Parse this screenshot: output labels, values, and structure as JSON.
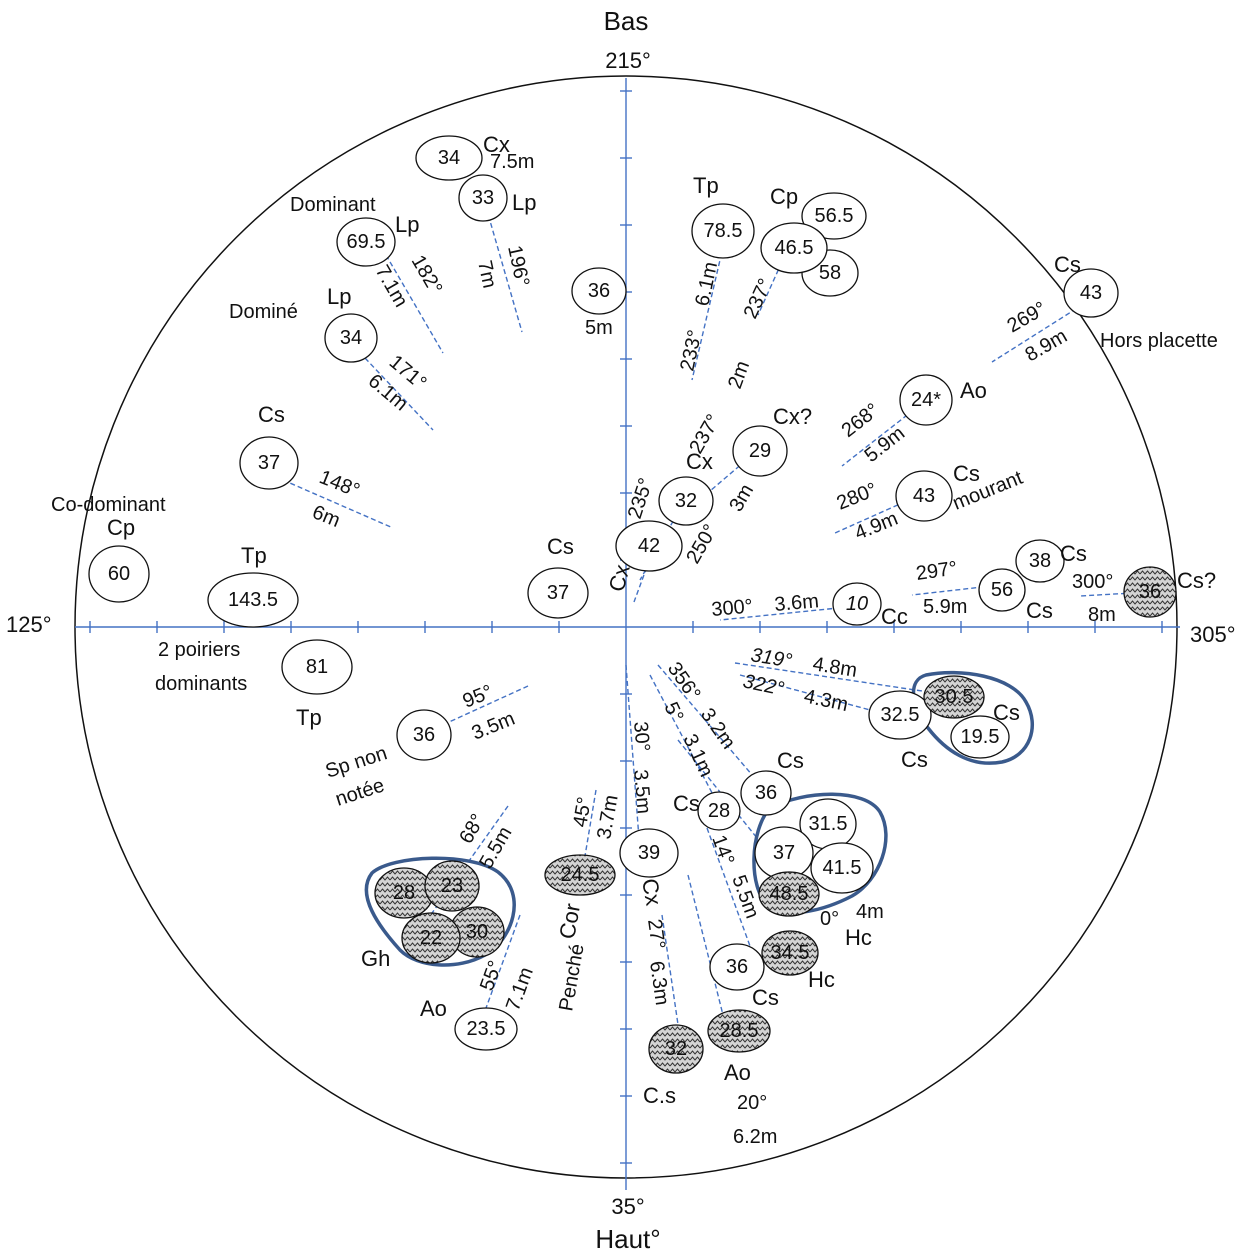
{
  "compass": {
    "top_word": "Bas",
    "top_angle": "215°",
    "bottom_angle": "35°",
    "bottom_word": "Haut°",
    "left_angle": "125°",
    "right_angle": "305°"
  },
  "trees": [
    {
      "id": "t01",
      "value": "34",
      "species": "Cx",
      "distance": "7.5m"
    },
    {
      "id": "t02",
      "value": "33",
      "species": "Lp",
      "angle": "196°",
      "distance": "7m"
    },
    {
      "id": "t03",
      "value": "69.5",
      "species": "Lp",
      "note": "Dominant",
      "angle": "182°",
      "distance": "7.1m"
    },
    {
      "id": "t04",
      "value": "34",
      "species": "Lp",
      "note": "Dominé",
      "angle": "171°",
      "distance": "6.1m"
    },
    {
      "id": "t05",
      "value": "36",
      "distance": "5m"
    },
    {
      "id": "t06",
      "value": "78.5",
      "species": "Tp",
      "angle": "233°",
      "distance": "6.1m"
    },
    {
      "id": "t07",
      "value": "46.5",
      "species": "Cp",
      "angle": "237°"
    },
    {
      "id": "t08",
      "value": "56.5"
    },
    {
      "id": "t09",
      "value": "58"
    },
    {
      "id": "t10",
      "value": "43",
      "species": "Cs",
      "note": "Hors placette",
      "angle": "269°",
      "distance": "8.9m"
    },
    {
      "id": "t11",
      "value": "24*",
      "species": "Ao",
      "angle": "268°",
      "distance": "5.9m"
    },
    {
      "id": "t12",
      "value": "43",
      "species": "Cs",
      "note": "mourant",
      "angle": "280°",
      "distance": "4.9m"
    },
    {
      "id": "t13",
      "value": "29",
      "species": "Cx?",
      "angle": "237°",
      "distance": "2m"
    },
    {
      "id": "t14",
      "value": "32",
      "species": "Cx",
      "angle": "235°"
    },
    {
      "id": "t15",
      "value": "42",
      "species": "Cx",
      "angle": "250°",
      "distance": "3m"
    },
    {
      "id": "t16",
      "value": "37",
      "species": "Cs",
      "angle": "148°",
      "distance": "6m"
    },
    {
      "id": "t17",
      "value": "37",
      "species": "Cs"
    },
    {
      "id": "t18",
      "value": "60",
      "species": "Cp",
      "note": "Co-dominant"
    },
    {
      "id": "t19",
      "value": "143.5",
      "species": "Tp"
    },
    {
      "id": "t20",
      "value": "81",
      "species": "Tp",
      "note": "2 poiriers dominants"
    },
    {
      "id": "t21",
      "value": "10",
      "species": "Cc",
      "angle": "300°",
      "distance": "3.6m"
    },
    {
      "id": "t22",
      "value": "56",
      "species": "Cs",
      "angle": "297°",
      "distance": "5.9m"
    },
    {
      "id": "t23",
      "value": "38",
      "species": "Cs"
    },
    {
      "id": "t24",
      "value": "36",
      "species": "Cs?",
      "angle": "300°",
      "distance": "8m"
    },
    {
      "id": "t25",
      "value": "30.5",
      "species": "Cs",
      "angle": "319°",
      "distance": "4.8m"
    },
    {
      "id": "t26",
      "value": "19.5"
    },
    {
      "id": "t27",
      "value": "32.5",
      "species": "Cs",
      "angle": "322°",
      "distance": "4.3m"
    },
    {
      "id": "t28",
      "value": "36",
      "species": "Sp non notée",
      "angle": "95°",
      "distance": "3.5m"
    },
    {
      "id": "t29",
      "value": "36",
      "species": "Cs",
      "angle": "356°",
      "distance": "3.2m"
    },
    {
      "id": "t30",
      "value": "28",
      "species": "Cs",
      "angle": "5°",
      "distance": "3.1m"
    },
    {
      "id": "t31",
      "value": "31.5"
    },
    {
      "id": "t32",
      "value": "37"
    },
    {
      "id": "t33",
      "value": "41.5"
    },
    {
      "id": "t34",
      "value": "48.5",
      "species": "Hc",
      "angle": "0°",
      "distance": "4m"
    },
    {
      "id": "t35",
      "value": "39",
      "species": "Cx",
      "angle": "30°",
      "distance": "3.5m"
    },
    {
      "id": "t36",
      "value": "24.5",
      "species": "Cor",
      "note": "Penché",
      "angle": "45°",
      "distance": "3.7m"
    },
    {
      "id": "t37",
      "value": "28",
      "species": "Gh"
    },
    {
      "id": "t38",
      "value": "23"
    },
    {
      "id": "t39",
      "value": "22"
    },
    {
      "id": "t40",
      "value": "30",
      "angle": "68°",
      "distance": "5.5m"
    },
    {
      "id": "t41",
      "value": "23.5",
      "species": "Ao",
      "angle": "55°",
      "distance": "7.1m"
    },
    {
      "id": "t42",
      "value": "34.5",
      "species": "Hc"
    },
    {
      "id": "t43",
      "value": "36",
      "species": "Cs",
      "angle": "14°",
      "distance": "5.5m"
    },
    {
      "id": "t44",
      "value": "32",
      "species": "C.s",
      "angle": "27°",
      "distance": "6.3m"
    },
    {
      "id": "t45",
      "value": "28.5",
      "species": "Ao",
      "angle": "20°",
      "distance": "6.2m"
    }
  ]
}
